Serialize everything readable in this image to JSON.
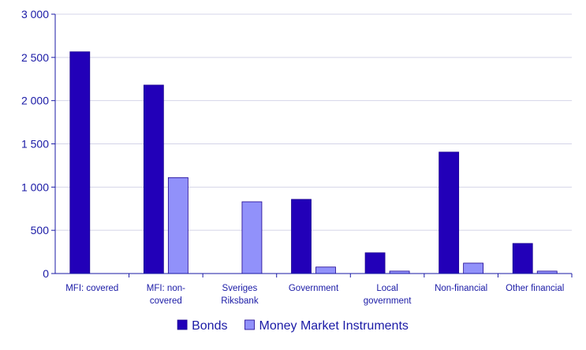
{
  "chart_data": {
    "type": "bar",
    "categories": [
      [
        "MFI: covered"
      ],
      [
        "MFI: non-",
        "covered"
      ],
      [
        "Sveriges",
        "Riksbank"
      ],
      [
        "Government"
      ],
      [
        "Local",
        "government"
      ],
      [
        "Non-financial"
      ],
      [
        "Other financial"
      ]
    ],
    "series": [
      {
        "name": "Bonds",
        "color": "#2200b8",
        "values": [
          2565,
          2180,
          null,
          858,
          240,
          1405,
          348
        ]
      },
      {
        "name": "Money Market Instruments",
        "color": "#9191fa",
        "values": [
          null,
          1110,
          830,
          75,
          28,
          120,
          28
        ]
      }
    ],
    "ylim": [
      0,
      3000
    ],
    "yticks": [
      {
        "value": 0,
        "label": "0"
      },
      {
        "value": 500,
        "label": "500"
      },
      {
        "value": 1000,
        "label": "1 000"
      },
      {
        "value": 1500,
        "label": "1 500"
      },
      {
        "value": 2000,
        "label": "2 000"
      },
      {
        "value": 2500,
        "label": "2 500"
      },
      {
        "value": 3000,
        "label": "3 000"
      }
    ],
    "grid": true,
    "legend_position": "bottom",
    "axis_color": "#1a1aa6",
    "grid_color": "#d4d4e8",
    "text_color": "#1a1aa6"
  }
}
